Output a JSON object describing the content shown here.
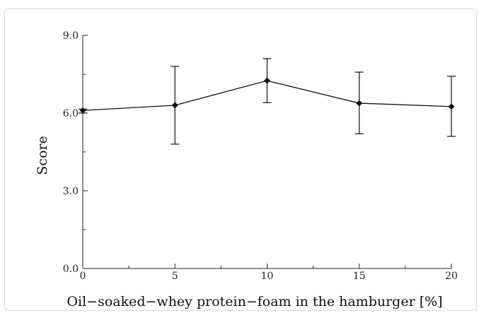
{
  "chart_data": {
    "type": "line",
    "title": "",
    "xlabel": "Oil−soaked−whey protein−foam in the hamburger [%]",
    "ylabel": "Score",
    "x": [
      0,
      5,
      10,
      15,
      20
    ],
    "x_tick_labels": [
      "0",
      "5",
      "10",
      "15",
      "20"
    ],
    "y_tick_labels": [
      "0.0",
      "3.0",
      "6.0",
      "9.0"
    ],
    "xlim": [
      0,
      20
    ],
    "ylim": [
      0,
      9
    ],
    "series": [
      {
        "values": [
          6.1,
          6.3,
          7.25,
          6.38,
          6.25
        ],
        "error_low": [
          6.0,
          4.8,
          6.4,
          5.2,
          5.1
        ],
        "error_high": [
          6.15,
          7.8,
          8.1,
          7.58,
          7.42
        ]
      }
    ],
    "grid": false,
    "legend": "none"
  }
}
